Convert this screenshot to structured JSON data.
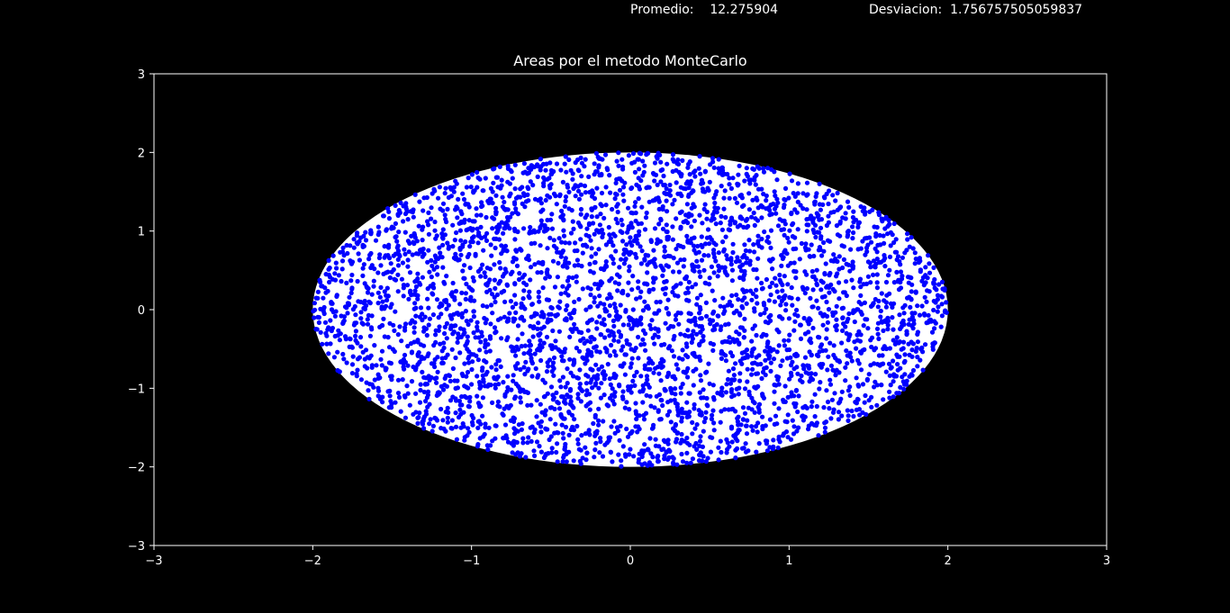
{
  "stats": {
    "promedio_label": "Promedio:",
    "promedio_value": "12.275904",
    "desviacion_label": "Desviacion:",
    "desviacion_value": "1.756757505059837"
  },
  "chart_data": {
    "type": "scatter",
    "title": "Areas por el metodo MonteCarlo",
    "xlabel": "",
    "ylabel": "",
    "xlim": [
      -3,
      3
    ],
    "ylim": [
      -3,
      3
    ],
    "xticks": [
      "−3",
      "−2",
      "−1",
      "0",
      "1",
      "2",
      "3"
    ],
    "yticks": [
      "−3",
      "−2",
      "−1",
      "0",
      "1",
      "2",
      "3"
    ],
    "grid": false,
    "background": "#000000",
    "ellipse": {
      "cx": 0,
      "cy": 0,
      "a": 2,
      "b": 2,
      "fill": "#ffffff"
    },
    "points": {
      "color": "#0000ff",
      "count": 4000,
      "region": "ellipse x^2/4 + y^2/4 <= 1 scaled to axes",
      "note_visible": false
    }
  }
}
